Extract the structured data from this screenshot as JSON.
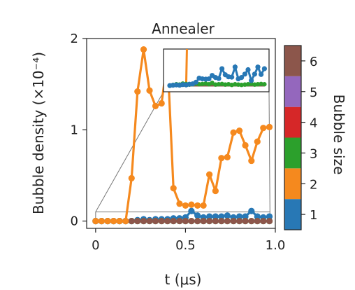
{
  "chart_data": {
    "type": "line",
    "title": "Annealer",
    "xlabel": "t (μs)",
    "ylabel": "Bubble density (×10⁻⁴)",
    "xlim": [
      -0.05,
      1.0
    ],
    "ylim": [
      -0.08,
      2.0
    ],
    "xticks": [
      0,
      0.5,
      1.0
    ],
    "xtick_labels": [
      "0",
      "0.5",
      "1.0"
    ],
    "yticks": [
      0,
      1,
      2
    ],
    "ytick_labels": [
      "0",
      "1",
      "2"
    ],
    "x": [
      0,
      0.033,
      0.067,
      0.1,
      0.133,
      0.167,
      0.2,
      0.233,
      0.267,
      0.3,
      0.333,
      0.367,
      0.4,
      0.433,
      0.467,
      0.5,
      0.533,
      0.567,
      0.6,
      0.633,
      0.667,
      0.7,
      0.733,
      0.767,
      0.8,
      0.833,
      0.867,
      0.9,
      0.933,
      0.967
    ],
    "series": [
      {
        "name": "1",
        "color": "#2878b5",
        "values": [
          0.0,
          0.0,
          0.0,
          0.0,
          0.0,
          0.0,
          0.0,
          0.01,
          0.02,
          0.01,
          0.02,
          0.02,
          0.02,
          0.03,
          0.03,
          0.04,
          0.11,
          0.06,
          0.04,
          0.05,
          0.05,
          0.05,
          0.06,
          0.04,
          0.05,
          0.05,
          0.11,
          0.05,
          0.04,
          0.05
        ]
      },
      {
        "name": "2",
        "color": "#f5891e",
        "values": [
          0.0,
          0.0,
          0.0,
          0.0,
          0.0,
          0.0,
          0.47,
          1.42,
          1.88,
          1.43,
          1.26,
          1.29,
          1.78,
          0.36,
          0.19,
          0.17,
          0.18,
          0.17,
          0.17,
          0.51,
          0.33,
          0.69,
          0.7,
          0.97,
          0.99,
          0.83,
          0.66,
          0.87,
          1.02,
          1.03
        ]
      },
      {
        "name": "3",
        "color": "#2ca02c",
        "values": [
          0.0,
          0.0,
          0.0,
          0.0,
          0.0,
          0.0,
          0.0,
          0.0,
          0.0,
          0.0,
          0.0,
          0.0,
          0.0,
          0.0,
          0.0,
          0.0,
          0.0,
          0.0,
          0.0,
          0.0,
          0.0,
          0.0,
          0.0,
          0.0,
          0.0,
          0.0,
          0.0,
          0.0,
          0.0,
          0.0
        ]
      },
      {
        "name": "6",
        "color": "#8c564b",
        "values": [
          0.0,
          0.0,
          0.0,
          0.0,
          0.0,
          0.0,
          0.0,
          0.0,
          0.0,
          0.0,
          0.0,
          0.0,
          0.0,
          0.0,
          0.0,
          0.0,
          0.0,
          0.0,
          0.0,
          0.0,
          0.0,
          0.0,
          0.0,
          0.0,
          0.0,
          0.0,
          0.0,
          0.0,
          0.0,
          0.0
        ]
      }
    ],
    "inset": {
      "xlim": [
        -0.05,
        1.0
      ],
      "ylim": [
        -0.01,
        0.1
      ],
      "series_1": [
        0.0,
        0.001,
        0.002,
        0.001,
        0.003,
        0.002,
        0.004,
        0.005,
        0.01,
        0.022,
        0.02,
        0.019,
        0.02,
        0.03,
        0.024,
        0.021,
        0.05,
        0.032,
        0.026,
        0.025,
        0.055,
        0.02,
        0.024,
        0.034,
        0.047,
        0.015,
        0.034,
        0.055,
        0.033,
        0.05
      ],
      "series_3": [
        0.0,
        0.002,
        0.004,
        0.003,
        0.006,
        0.005,
        0.003,
        0.004,
        0.006,
        0.004,
        0.005,
        0.006,
        0.004,
        0.008,
        0.003,
        0.004,
        0.005,
        0.003,
        0.004,
        0.002,
        0.004,
        0.003,
        0.002,
        0.003,
        0.004,
        0.005,
        0.003,
        0.004,
        0.005,
        0.004
      ]
    },
    "colorbar": {
      "label": "Bubble size",
      "levels": [
        "1",
        "2",
        "3",
        "4",
        "5",
        "6"
      ],
      "colors": [
        "#2878b5",
        "#f5891e",
        "#2ca02c",
        "#d62728",
        "#9467bd",
        "#8c564b"
      ]
    }
  }
}
